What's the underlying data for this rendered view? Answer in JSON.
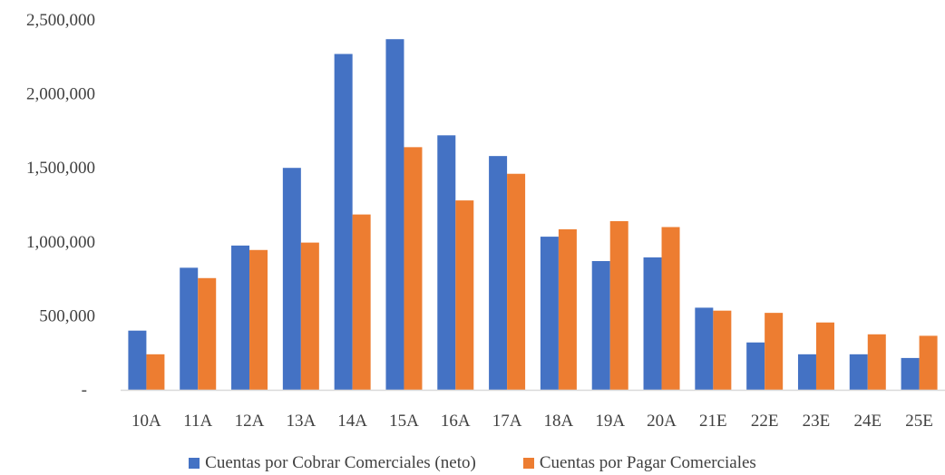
{
  "chart_data": {
    "type": "bar",
    "categories": [
      "10A",
      "11A",
      "12A",
      "13A",
      "14A",
      "15A",
      "16A",
      "17A",
      "18A",
      "19A",
      "20A",
      "21E",
      "22E",
      "23E",
      "24E",
      "25E"
    ],
    "series": [
      {
        "name": "Cuentas por Cobrar Comerciales (neto)",
        "color": "#4472C4",
        "values": [
          400000,
          825000,
          975000,
          1500000,
          2270000,
          2370000,
          1720000,
          1580000,
          1035000,
          870000,
          895000,
          555000,
          320000,
          240000,
          240000,
          215000
        ]
      },
      {
        "name": "Cuentas por Pagar Comerciales",
        "color": "#ED7D31",
        "values": [
          240000,
          755000,
          945000,
          995000,
          1185000,
          1640000,
          1280000,
          1460000,
          1085000,
          1140000,
          1100000,
          535000,
          520000,
          455000,
          375000,
          365000
        ]
      }
    ],
    "y_ticks": [
      "-",
      "500,000",
      "1,000,000",
      "1,500,000",
      "2,000,000",
      "2,500,000"
    ],
    "ylim": [
      0,
      2500000
    ],
    "title": "",
    "xlabel": "",
    "ylabel": "",
    "grid": false,
    "legend_position": "bottom"
  }
}
